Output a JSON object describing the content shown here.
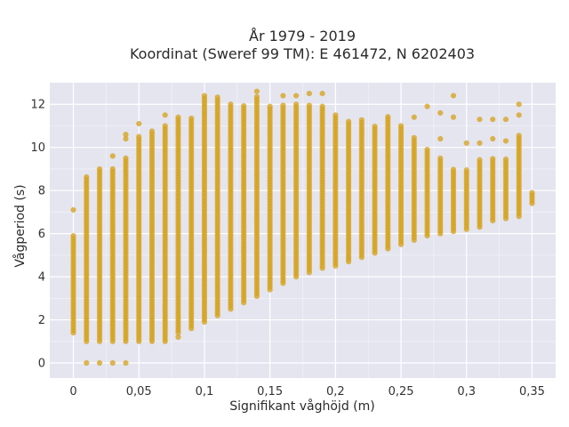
{
  "colors": {
    "plot_background": "#e5e5f0",
    "grid": "#ffffff",
    "marker": "#d4a017",
    "text": "#2a2a2a"
  },
  "chart_data": {
    "type": "scatter",
    "title_line1": "År 1979 - 2019",
    "title_line2": "Koordinat (Sweref 99 TM): E 461472, N 6202403",
    "xlabel": "Signifikant våghöjd (m)",
    "ylabel": "Vågperiod (s)",
    "xlim": [
      -0.018,
      0.368
    ],
    "ylim": [
      -0.7,
      13.0
    ],
    "xticks": [
      0,
      0.05,
      0.1,
      0.15,
      0.2,
      0.25,
      0.3,
      0.35
    ],
    "xtick_labels": [
      "0",
      "0,05",
      "0,1",
      "0,15",
      "0,2",
      "0,25",
      "0,3",
      "0,35"
    ],
    "yticks": [
      0,
      2,
      4,
      6,
      8,
      10,
      12
    ],
    "ytick_labels": [
      "0",
      "2",
      "4",
      "6",
      "8",
      "10",
      "12"
    ],
    "grid": true,
    "marker_opacity": 0.75,
    "columns": [
      {
        "x": 0.0,
        "ymin": 1.4,
        "ymax": 6.0,
        "extra": [
          7.1
        ]
      },
      {
        "x": 0.01,
        "ymin": 1.0,
        "ymax": 8.7,
        "extra": [
          0
        ]
      },
      {
        "x": 0.02,
        "ymin": 1.0,
        "ymax": 9.0,
        "extra": [
          0
        ]
      },
      {
        "x": 0.03,
        "ymin": 1.0,
        "ymax": 9.0,
        "extra": [
          0,
          9.6
        ]
      },
      {
        "x": 0.04,
        "ymin": 1.0,
        "ymax": 9.6,
        "extra": [
          0,
          10.4,
          10.6
        ]
      },
      {
        "x": 0.05,
        "ymin": 1.0,
        "ymax": 10.5,
        "extra": [
          11.1
        ]
      },
      {
        "x": 0.06,
        "ymin": 1.0,
        "ymax": 10.8,
        "extra": []
      },
      {
        "x": 0.07,
        "ymin": 1.0,
        "ymax": 11.0,
        "extra": [
          11.5
        ]
      },
      {
        "x": 0.08,
        "ymin": 1.4,
        "ymax": 11.4,
        "extra": [
          1.2
        ]
      },
      {
        "x": 0.09,
        "ymin": 1.6,
        "ymax": 11.4,
        "extra": []
      },
      {
        "x": 0.1,
        "ymin": 1.9,
        "ymax": 12.4,
        "extra": []
      },
      {
        "x": 0.11,
        "ymin": 2.2,
        "ymax": 12.4,
        "extra": []
      },
      {
        "x": 0.12,
        "ymin": 2.5,
        "ymax": 12.0,
        "extra": []
      },
      {
        "x": 0.13,
        "ymin": 2.8,
        "ymax": 12.0,
        "extra": []
      },
      {
        "x": 0.14,
        "ymin": 3.1,
        "ymax": 12.4,
        "extra": [
          12.6
        ]
      },
      {
        "x": 0.15,
        "ymin": 3.4,
        "ymax": 12.0,
        "extra": []
      },
      {
        "x": 0.16,
        "ymin": 3.7,
        "ymax": 12.0,
        "extra": [
          12.4
        ]
      },
      {
        "x": 0.17,
        "ymin": 4.0,
        "ymax": 12.0,
        "extra": [
          12.4
        ]
      },
      {
        "x": 0.18,
        "ymin": 4.2,
        "ymax": 12.0,
        "extra": [
          12.5
        ]
      },
      {
        "x": 0.19,
        "ymin": 4.4,
        "ymax": 12.0,
        "extra": [
          12.5
        ]
      },
      {
        "x": 0.2,
        "ymin": 4.5,
        "ymax": 11.6,
        "extra": []
      },
      {
        "x": 0.21,
        "ymin": 4.7,
        "ymax": 11.2,
        "extra": []
      },
      {
        "x": 0.22,
        "ymin": 4.9,
        "ymax": 11.3,
        "extra": []
      },
      {
        "x": 0.23,
        "ymin": 5.1,
        "ymax": 11.0,
        "extra": []
      },
      {
        "x": 0.24,
        "ymin": 5.3,
        "ymax": 11.5,
        "extra": []
      },
      {
        "x": 0.25,
        "ymin": 5.5,
        "ymax": 11.0,
        "extra": []
      },
      {
        "x": 0.26,
        "ymin": 5.7,
        "ymax": 10.5,
        "extra": [
          11.4
        ]
      },
      {
        "x": 0.27,
        "ymin": 5.9,
        "ymax": 10.0,
        "extra": [
          11.9
        ]
      },
      {
        "x": 0.28,
        "ymin": 6.0,
        "ymax": 9.5,
        "extra": [
          10.4,
          11.6
        ]
      },
      {
        "x": 0.29,
        "ymin": 6.1,
        "ymax": 9.0,
        "extra": [
          11.4,
          12.4
        ]
      },
      {
        "x": 0.3,
        "ymin": 6.2,
        "ymax": 9.0,
        "extra": [
          10.2
        ]
      },
      {
        "x": 0.31,
        "ymin": 6.3,
        "ymax": 9.5,
        "extra": [
          11.3,
          10.2
        ]
      },
      {
        "x": 0.32,
        "ymin": 6.6,
        "ymax": 9.5,
        "extra": [
          11.3,
          10.4
        ]
      },
      {
        "x": 0.33,
        "ymin": 6.7,
        "ymax": 9.5,
        "extra": [
          11.3,
          10.3
        ]
      },
      {
        "x": 0.34,
        "ymin": 6.8,
        "ymax": 10.6,
        "extra": [
          11.5,
          12.0
        ]
      },
      {
        "x": 0.35,
        "ymin": 7.4,
        "ymax": 8.0,
        "extra": []
      }
    ]
  }
}
